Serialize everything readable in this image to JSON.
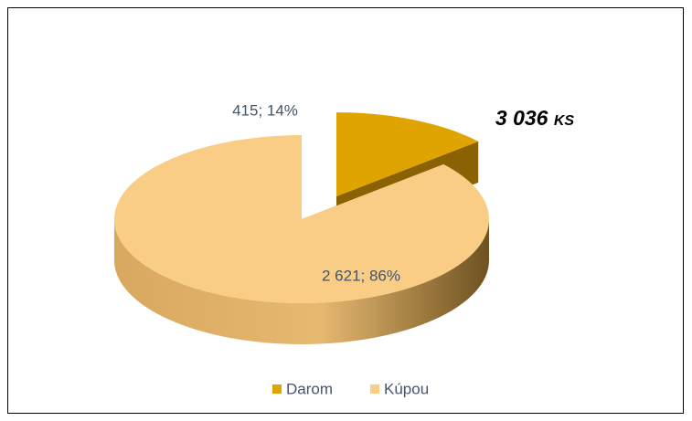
{
  "chart_data": {
    "type": "pie",
    "categories": [
      "Darom",
      "Kúpou"
    ],
    "values": [
      415,
      2621
    ],
    "value_labels": [
      "415; 14%",
      "2 621; 86%"
    ],
    "colors": [
      "#e0a400",
      "#f9cd85"
    ],
    "annotation": "3 036 ks",
    "legend": "bottom"
  }
}
